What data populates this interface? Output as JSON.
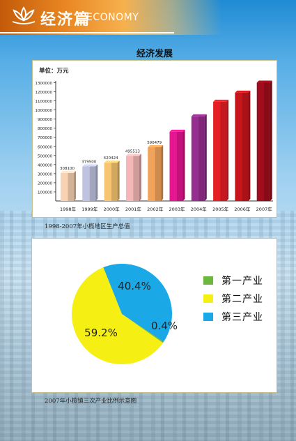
{
  "header": {
    "title_cn": "经济篇",
    "title_en": "ECONOMY"
  },
  "chart1_title": "经济发展",
  "chart2_title": "",
  "chart_data": [
    {
      "type": "bar",
      "unit_label": "单位：万元",
      "categories": [
        "1998年",
        "1999年",
        "2000年",
        "2001年",
        "2002年",
        "2003年",
        "2004年",
        "2005年",
        "2006年",
        "2007年"
      ],
      "values": [
        308100,
        379500,
        420424,
        495513,
        590479,
        760000,
        930000,
        1090000,
        1190000,
        1300000
      ],
      "data_labels": [
        "308100",
        "379500",
        "420424",
        "495513",
        "590479",
        "",
        "",
        "",
        "",
        ""
      ],
      "bar_colors": [
        "#f8d2b2",
        "#bfc3df",
        "#f7c56f",
        "#f3b7b8",
        "#f2a35b",
        "#e5168f",
        "#962e8f",
        "#e51f26",
        "#c8151c",
        "#a00d1c"
      ],
      "yticks": [
        "100000",
        "200000",
        "300000",
        "400000",
        "500000",
        "600000",
        "700000",
        "800000",
        "900000",
        "1000000",
        "1100000",
        "1200000",
        "1300000"
      ],
      "ylim": [
        0,
        1350000
      ],
      "caption": "1998-2007年小榄地区生产总值"
    },
    {
      "type": "pie",
      "slices": [
        {
          "name": "第一产业",
          "value": 0.4,
          "label": "0.4%",
          "color": "#6ab93e"
        },
        {
          "name": "第二产业",
          "value": 59.2,
          "label": "59.2%",
          "color": "#f6ef14"
        },
        {
          "name": "第三产业",
          "value": 40.4,
          "label": "40.4%",
          "color": "#1aa8e6"
        }
      ],
      "caption": "2007年小榄镇三次产业比例示意图"
    }
  ]
}
